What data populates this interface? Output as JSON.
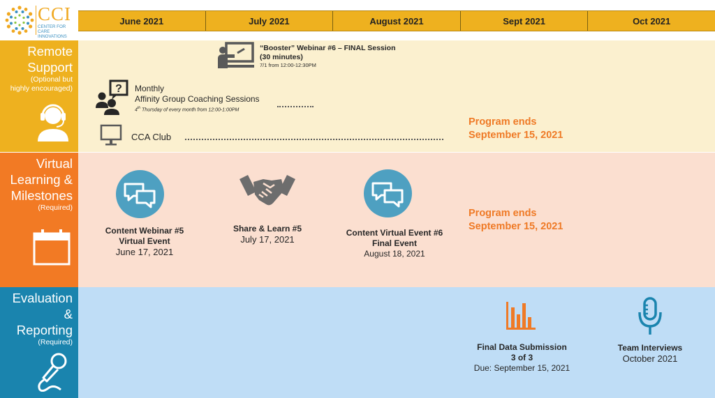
{
  "logo": {
    "letters": "CCI",
    "subtitle_line1": "CENTER FOR CARE",
    "subtitle_line2": "INNOVATIONS",
    "colors": {
      "primary": "#f0a820",
      "secondary": "#3a8fc0"
    }
  },
  "months": [
    "June 2021",
    "July 2021",
    "August 2021",
    "Sept 2021",
    "Oct 2021"
  ],
  "rows": {
    "remote": {
      "title_lines": [
        "Remote",
        "Support"
      ],
      "subtitle_lines": [
        "(Optional but",
        "highly encouraged)"
      ],
      "icon": "headset-user-icon",
      "color": "#eeb11f"
    },
    "virtual": {
      "title_lines": [
        "Virtual",
        "Learning &",
        "Milestones"
      ],
      "subtitle_lines": [
        "(Required)"
      ],
      "icon": "calendar-icon",
      "color": "#f27a24"
    },
    "eval": {
      "title_lines": [
        "Evaluation",
        "&",
        "Reporting"
      ],
      "subtitle_lines": [
        "(Required)"
      ],
      "icon": "microphone-icon",
      "color": "#1a84ae"
    }
  },
  "remote_items": {
    "booster": {
      "line1": "“Booster” Webinar #6 – FINAL Session",
      "line2": "(30 minutes)",
      "line3": "7/1 from 12:00-12:30PM",
      "icon": "presentation-board-icon"
    },
    "coaching": {
      "line1": "Monthly",
      "line2": "Affinity Group Coaching Sessions",
      "note_sup": "th",
      "note_pre": "4",
      "note_post": " Thursday of every month from 12:00-1:00PM",
      "icon": "question-group-icon"
    },
    "club": {
      "label": "CCA Club",
      "icon": "monitor-icon"
    },
    "program_end_line1": "Program ends",
    "program_end_line2": "September 15, 2021"
  },
  "virtual_items": {
    "webinar5": {
      "line1": "Content Webinar #5",
      "line2": "Virtual Event",
      "date": "June 17, 2021",
      "icon": "chat-bubbles-icon"
    },
    "share5": {
      "line1": "Share & Learn #5",
      "date": "July 17, 2021",
      "icon": "handshake-icon"
    },
    "event6": {
      "line1": "Content Virtual Event #6",
      "line2": "Final Event",
      "date": "August 18, 2021",
      "icon": "chat-bubbles-icon"
    },
    "program_end_line1": "Program ends",
    "program_end_line2": "September 15, 2021"
  },
  "eval_items": {
    "data": {
      "line1": "Final Data Submission",
      "line2": "3 of 3",
      "due": "Due: September 15, 2021",
      "icon": "bar-chart-icon"
    },
    "interviews": {
      "line1": "Team Interviews",
      "date": "October 2021",
      "icon": "podcast-microphone-icon"
    }
  },
  "colors": {
    "header": "#eeb11f",
    "orange_text": "#ef7a26",
    "icon_blue": "#4ea0c1",
    "dark": "#262626"
  }
}
